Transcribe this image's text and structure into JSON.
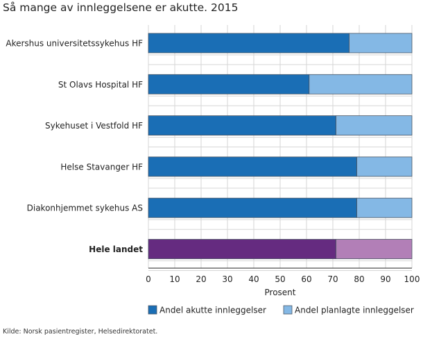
{
  "chart_data": {
    "type": "bar",
    "orientation": "horizontal",
    "stacked": true,
    "title": "Så mange av innleggelsene er akutte. 2015",
    "xlabel": "Prosent",
    "ylabel": "",
    "xlim": [
      0,
      100
    ],
    "xticks": [
      "0",
      "10",
      "20",
      "30",
      "40",
      "50",
      "60",
      "70",
      "80",
      "90",
      "100"
    ],
    "categories": [
      "Akershus universitetssykehus HF",
      "St Olavs Hospital HF",
      "Sykehuset i Vestfold HF",
      "Helse Stavanger HF",
      "Diakonhjemmet sykehus AS",
      "Hele landet"
    ],
    "bold_categories": [
      "Hele landet"
    ],
    "series": [
      {
        "name": "Andel akutte innleggelser",
        "values": [
          76.2,
          61.0,
          71.2,
          79.1,
          79.1,
          71.2
        ],
        "color": "#1a6eb5",
        "highlight_color": "#652b80"
      },
      {
        "name": "Andel planlagte innleggelser",
        "values": [
          23.8,
          39.0,
          28.8,
          20.9,
          20.9,
          28.8
        ],
        "color": "#84b8e5",
        "highlight_color": "#b27fb7"
      }
    ],
    "grid": true,
    "legend_position": "bottom"
  },
  "source": "Kilde: Norsk pasientregister, Helsedirektoratet."
}
